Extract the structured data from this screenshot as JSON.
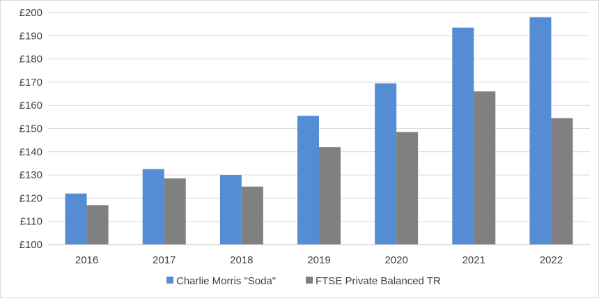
{
  "chart_data": {
    "type": "bar",
    "title": "",
    "xlabel": "",
    "ylabel": "",
    "categories": [
      "2016",
      "2017",
      "2018",
      "2019",
      "2020",
      "2021",
      "2022"
    ],
    "series": [
      {
        "name": "Charlie Morris \"Soda\"",
        "color": "#548dd4",
        "values": [
          122,
          132.5,
          130,
          155.5,
          169.5,
          193.5,
          198
        ]
      },
      {
        "name": "FTSE Private Balanced TR",
        "color": "#808080",
        "values": [
          117,
          128.5,
          125,
          142,
          148.5,
          166,
          154.5
        ]
      }
    ],
    "ylim": [
      100,
      200
    ],
    "yticks": [
      "£100",
      "£110",
      "£120",
      "£130",
      "£140",
      "£150",
      "£160",
      "£170",
      "£180",
      "£190",
      "£200"
    ],
    "grid": true,
    "legend_position": "bottom"
  }
}
